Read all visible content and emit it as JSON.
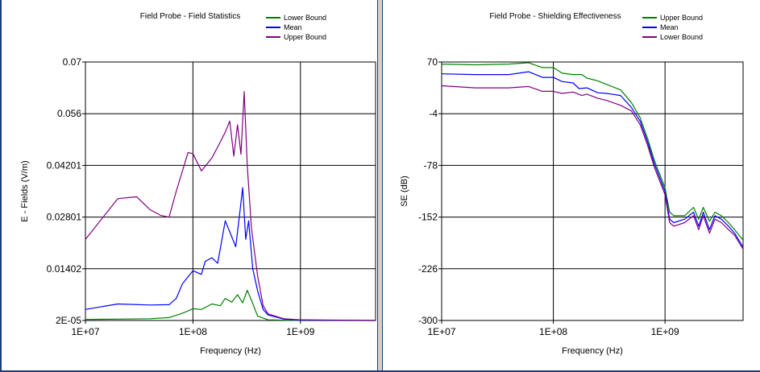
{
  "chart_data": [
    {
      "type": "line",
      "title": "Field Probe - Field Statistics",
      "xlabel": "Frequency (Hz)",
      "ylabel": "E - Fields (V/m)",
      "x_scale": "log",
      "xlim": [
        10000000,
        5000000000
      ],
      "ylim": [
        2e-05,
        0.07
      ],
      "x_ticks": [
        "1E+07",
        "1E+08",
        "1E+09"
      ],
      "y_ticks": [
        "2E-05",
        "0.01402",
        "0.02801",
        "0.04201",
        "0.056",
        "0.07"
      ],
      "grid": true,
      "legend_position": "top-right",
      "series": [
        {
          "name": "Lower Bound",
          "color": "#008000",
          "points": [
            [
              10000000,
              0.0003
            ],
            [
              20000000,
              0.0004
            ],
            [
              40000000,
              0.0005
            ],
            [
              60000000,
              0.0008
            ],
            [
              80000000,
              0.002
            ],
            [
              100000000,
              0.0032
            ],
            [
              120000000,
              0.003
            ],
            [
              150000000,
              0.0045
            ],
            [
              180000000,
              0.004
            ],
            [
              200000000,
              0.006
            ],
            [
              230000000,
              0.005
            ],
            [
              260000000,
              0.007
            ],
            [
              290000000,
              0.0048
            ],
            [
              320000000,
              0.0082
            ],
            [
              350000000,
              0.0055
            ],
            [
              400000000,
              0.0012
            ],
            [
              500000000,
              0.0002
            ],
            [
              1000000000,
              3e-05
            ],
            [
              5000000000,
              2e-05
            ]
          ]
        },
        {
          "name": "Mean",
          "color": "#0000ff",
          "points": [
            [
              10000000,
              0.003
            ],
            [
              20000000,
              0.0045
            ],
            [
              40000000,
              0.0042
            ],
            [
              60000000,
              0.0043
            ],
            [
              70000000,
              0.006
            ],
            [
              80000000,
              0.01
            ],
            [
              100000000,
              0.0135
            ],
            [
              120000000,
              0.0125
            ],
            [
              130000000,
              0.016
            ],
            [
              150000000,
              0.017
            ],
            [
              170000000,
              0.0155
            ],
            [
              200000000,
              0.027
            ],
            [
              220000000,
              0.024
            ],
            [
              250000000,
              0.02
            ],
            [
              270000000,
              0.028
            ],
            [
              290000000,
              0.036
            ],
            [
              310000000,
              0.022
            ],
            [
              330000000,
              0.027
            ],
            [
              360000000,
              0.014
            ],
            [
              400000000,
              0.008
            ],
            [
              450000000,
              0.003
            ],
            [
              500000000,
              0.0015
            ],
            [
              700000000,
              0.0004
            ],
            [
              1000000000,
              0.0001
            ],
            [
              5000000000,
              2e-05
            ]
          ]
        },
        {
          "name": "Upper Bound",
          "color": "#800080",
          "points": [
            [
              10000000,
              0.022
            ],
            [
              20000000,
              0.033
            ],
            [
              30000000,
              0.0335
            ],
            [
              40000000,
              0.03
            ],
            [
              50000000,
              0.0285
            ],
            [
              60000000,
              0.028
            ],
            [
              70000000,
              0.035
            ],
            [
              90000000,
              0.0455
            ],
            [
              100000000,
              0.0452
            ],
            [
              120000000,
              0.0405
            ],
            [
              150000000,
              0.044
            ],
            [
              170000000,
              0.047
            ],
            [
              200000000,
              0.051
            ],
            [
              220000000,
              0.054
            ],
            [
              240000000,
              0.0445
            ],
            [
              260000000,
              0.053
            ],
            [
              280000000,
              0.045
            ],
            [
              300000000,
              0.062
            ],
            [
              320000000,
              0.042
            ],
            [
              350000000,
              0.025
            ],
            [
              400000000,
              0.012
            ],
            [
              450000000,
              0.004
            ],
            [
              500000000,
              0.0018
            ],
            [
              700000000,
              0.0005
            ],
            [
              1000000000,
              0.0002
            ],
            [
              5000000000,
              3e-05
            ]
          ]
        }
      ]
    },
    {
      "type": "line",
      "title": "Field Probe - Shielding Effectiveness",
      "xlabel": "Frequency (Hz)",
      "ylabel": "SE (dB)",
      "x_scale": "log",
      "xlim": [
        10000000,
        5000000000
      ],
      "ylim": [
        -300,
        70
      ],
      "x_ticks": [
        "1E+07",
        "1E+08",
        "1E+09"
      ],
      "y_ticks": [
        "-300",
        "-226",
        "-152",
        "-78",
        "-4",
        "70"
      ],
      "grid": true,
      "legend_position": "top-right",
      "series": [
        {
          "name": "Upper Bound",
          "color": "#008000",
          "points": [
            [
              10000000,
              67
            ],
            [
              20000000,
              66
            ],
            [
              40000000,
              67
            ],
            [
              60000000,
              69
            ],
            [
              80000000,
              62
            ],
            [
              100000000,
              62
            ],
            [
              120000000,
              54
            ],
            [
              150000000,
              52
            ],
            [
              180000000,
              52
            ],
            [
              200000000,
              47
            ],
            [
              250000000,
              43
            ],
            [
              300000000,
              38
            ],
            [
              400000000,
              30
            ],
            [
              500000000,
              12
            ],
            [
              600000000,
              -10
            ],
            [
              700000000,
              -40
            ],
            [
              800000000,
              -70
            ],
            [
              1000000000,
              -110
            ],
            [
              1100000000,
              -145
            ],
            [
              1200000000,
              -150
            ],
            [
              1500000000,
              -150
            ],
            [
              1800000000,
              -138
            ],
            [
              2000000000,
              -155
            ],
            [
              2200000000,
              -138
            ],
            [
              2500000000,
              -158
            ],
            [
              2800000000,
              -145
            ],
            [
              3200000000,
              -150
            ],
            [
              3700000000,
              -160
            ],
            [
              4200000000,
              -170
            ],
            [
              5000000000,
              -185
            ]
          ]
        },
        {
          "name": "Mean",
          "color": "#0000ff",
          "points": [
            [
              10000000,
              53
            ],
            [
              20000000,
              52
            ],
            [
              40000000,
              52
            ],
            [
              60000000,
              56
            ],
            [
              80000000,
              48
            ],
            [
              100000000,
              48
            ],
            [
              120000000,
              42
            ],
            [
              150000000,
              40
            ],
            [
              170000000,
              32
            ],
            [
              200000000,
              33
            ],
            [
              250000000,
              26
            ],
            [
              300000000,
              25
            ],
            [
              400000000,
              22
            ],
            [
              500000000,
              5
            ],
            [
              600000000,
              -15
            ],
            [
              700000000,
              -45
            ],
            [
              800000000,
              -75
            ],
            [
              1000000000,
              -115
            ],
            [
              1100000000,
              -155
            ],
            [
              1200000000,
              -160
            ],
            [
              1500000000,
              -155
            ],
            [
              1800000000,
              -145
            ],
            [
              2000000000,
              -165
            ],
            [
              2200000000,
              -145
            ],
            [
              2500000000,
              -170
            ],
            [
              2800000000,
              -150
            ],
            [
              3200000000,
              -155
            ],
            [
              3700000000,
              -165
            ],
            [
              4200000000,
              -175
            ],
            [
              5000000000,
              -195
            ]
          ]
        },
        {
          "name": "Lower Bound",
          "color": "#800080",
          "points": [
            [
              10000000,
              36
            ],
            [
              20000000,
              33
            ],
            [
              40000000,
              33
            ],
            [
              60000000,
              35
            ],
            [
              80000000,
              28
            ],
            [
              100000000,
              28
            ],
            [
              120000000,
              25
            ],
            [
              150000000,
              27
            ],
            [
              180000000,
              22
            ],
            [
              200000000,
              24
            ],
            [
              250000000,
              18
            ],
            [
              300000000,
              15
            ],
            [
              400000000,
              8
            ],
            [
              500000000,
              0
            ],
            [
              600000000,
              -20
            ],
            [
              700000000,
              -50
            ],
            [
              800000000,
              -80
            ],
            [
              1000000000,
              -120
            ],
            [
              1100000000,
              -160
            ],
            [
              1200000000,
              -165
            ],
            [
              1500000000,
              -160
            ],
            [
              1800000000,
              -150
            ],
            [
              2000000000,
              -170
            ],
            [
              2200000000,
              -150
            ],
            [
              2500000000,
              -175
            ],
            [
              2800000000,
              -155
            ],
            [
              3200000000,
              -160
            ],
            [
              3700000000,
              -170
            ],
            [
              4200000000,
              -178
            ],
            [
              5000000000,
              -198
            ]
          ]
        }
      ]
    }
  ]
}
